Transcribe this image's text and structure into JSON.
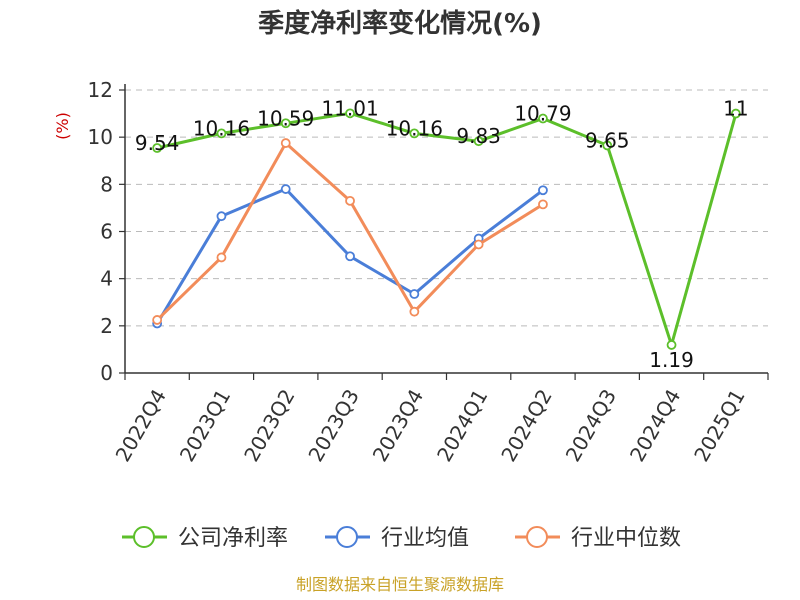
{
  "chart_data": {
    "type": "line",
    "title": "季度净利率变化情况(%)",
    "ylabel": "(%)",
    "xlabel": "",
    "ylim": [
      0,
      12
    ],
    "yticks": [
      0,
      2,
      4,
      6,
      8,
      10,
      12
    ],
    "grid": true,
    "legend": "bottom",
    "categories": [
      "2022Q4",
      "2023Q1",
      "2023Q2",
      "2023Q3",
      "2023Q4",
      "2024Q1",
      "2024Q2",
      "2024Q3",
      "2024Q4",
      "2025Q1"
    ],
    "series": [
      {
        "name": "公司净利率",
        "color": "#5cbf2a",
        "values": [
          9.54,
          10.16,
          10.59,
          11.01,
          10.16,
          9.83,
          10.79,
          9.65,
          1.19,
          11
        ],
        "labels": [
          "9.54",
          "10.16",
          "10.59",
          "11.01",
          "10.16",
          "9.83",
          "10.79",
          "9.65",
          "1.19",
          "11"
        ]
      },
      {
        "name": "行业均值",
        "color": "#4a7ed8",
        "values": [
          2.1,
          6.65,
          7.8,
          4.95,
          3.35,
          5.7,
          7.75,
          null,
          null,
          null
        ]
      },
      {
        "name": "行业中位数",
        "color": "#f28c5a",
        "values": [
          2.25,
          4.9,
          9.75,
          7.3,
          2.6,
          5.45,
          7.15,
          null,
          null,
          null
        ]
      }
    ]
  },
  "source_text": "制图数据来自恒生聚源数据库"
}
